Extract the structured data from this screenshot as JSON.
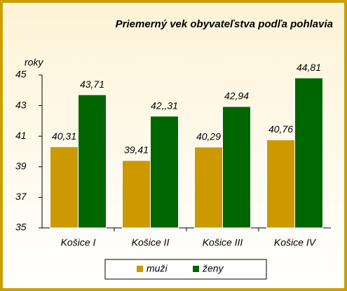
{
  "chart_data": {
    "type": "bar",
    "title": "Priemerný vek obyvateľstva podľa pohlavia",
    "y_label": "roky",
    "categories": [
      "Košice I",
      "Košice II",
      "Košice III",
      "Košice IV"
    ],
    "series": [
      {
        "name": "muži",
        "color": "#cc9900",
        "values": [
          40.31,
          39.41,
          40.29,
          40.76
        ],
        "value_labels": [
          "40,31",
          "39,41",
          "40,29",
          "40,76"
        ]
      },
      {
        "name": "ženy",
        "color": "#006600",
        "values": [
          43.71,
          42.31,
          42.94,
          44.81
        ],
        "value_labels": [
          "43,71",
          "42,,31",
          "42,94",
          "44,81"
        ]
      }
    ],
    "ylim": [
      35,
      45
    ],
    "yticks": [
      35,
      37,
      39,
      41,
      43,
      45
    ],
    "legend": "bottom"
  }
}
